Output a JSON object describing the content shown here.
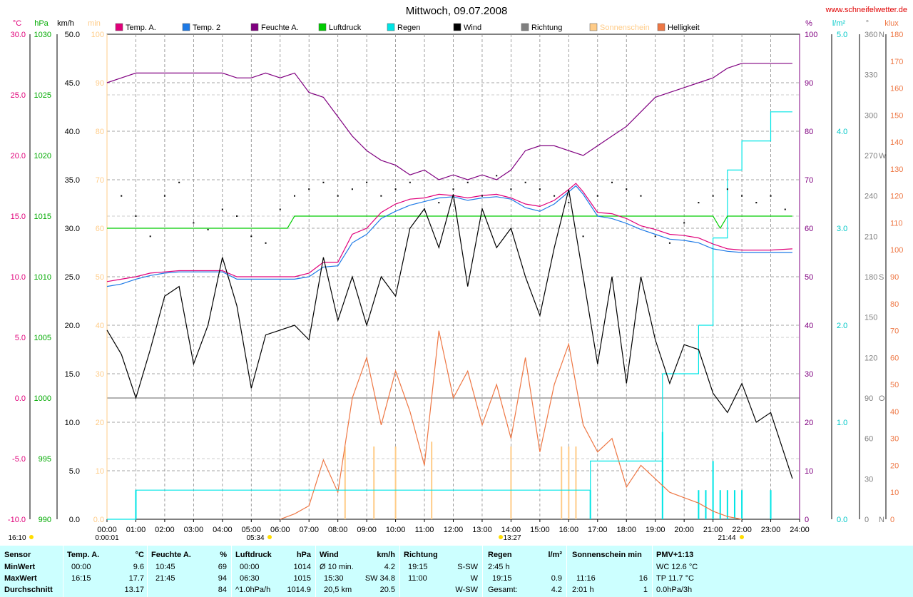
{
  "header": {
    "title": "Mittwoch, 09.07.2008",
    "site": "www.schneifelwetter.de"
  },
  "axis_units": {
    "temp": "°C",
    "pressure": "hPa",
    "wind": "km/h",
    "sun": "min",
    "humidity": "%",
    "rain": "l/m²",
    "direction": "°",
    "light": "klux"
  },
  "legend": [
    {
      "label": "Temp. A.",
      "color": "#e0007a"
    },
    {
      "label": "Temp. 2",
      "color": "#1e7ae6"
    },
    {
      "label": "Feuchte A.",
      "color": "#800080"
    },
    {
      "label": "Luftdruck",
      "color": "#00cc00"
    },
    {
      "label": "Regen",
      "color": "#00e5e5"
    },
    {
      "label": "Wind",
      "color": "#000000"
    },
    {
      "label": "Richtung",
      "color": "#808080"
    },
    {
      "label": "Sonnenschein",
      "color": "#ffcc88"
    },
    {
      "label": "Helligkeit",
      "color": "#ee7744"
    }
  ],
  "markers": {
    "day_start": "0:00:01",
    "sunrise": "05:34",
    "noon": "13:27",
    "sunset": "21:44"
  },
  "chart_data": {
    "type": "line",
    "title": "Mittwoch, 09.07.2008",
    "x_range_hours": [
      0,
      24
    ],
    "x_ticks": [
      "00:00",
      "01:00",
      "02:00",
      "03:00",
      "04:00",
      "05:00",
      "06:00",
      "07:00",
      "08:00",
      "09:00",
      "10:00",
      "11:00",
      "12:00",
      "13:00",
      "14:00",
      "15:00",
      "16:00",
      "17:00",
      "18:00",
      "19:00",
      "20:00",
      "21:00",
      "22:00",
      "23:00",
      "24:00"
    ],
    "axes": {
      "temp_c": {
        "range": [
          -10,
          30
        ],
        "ticks": [
          "-10.0",
          "-5.0",
          "0.0",
          "5.0",
          "10.0",
          "15.0",
          "20.0",
          "25.0",
          "30.0"
        ]
      },
      "pressure_hpa": {
        "range": [
          990,
          1030
        ],
        "ticks": [
          "990",
          "995",
          "1000",
          "1005",
          "1010",
          "1015",
          "1020",
          "1025",
          "1030"
        ]
      },
      "wind_kmh": {
        "range": [
          0,
          50
        ],
        "ticks": [
          "0.0",
          "5.0",
          "10.0",
          "15.0",
          "20.0",
          "25.0",
          "30.0",
          "35.0",
          "40.0",
          "45.0",
          "50.0"
        ]
      },
      "sun_min": {
        "range": [
          0,
          100
        ],
        "ticks": [
          "0.0",
          "10",
          "20",
          "30",
          "40",
          "50",
          "60",
          "70",
          "80",
          "90",
          "100"
        ]
      },
      "humidity_pct": {
        "range": [
          0,
          100
        ],
        "ticks": [
          "0",
          "10",
          "20",
          "30",
          "40",
          "50",
          "60",
          "70",
          "80",
          "90",
          "100"
        ]
      },
      "rain_lm2": {
        "range": [
          0,
          5
        ],
        "ticks": [
          "0.0",
          "1.0",
          "2.0",
          "3.0",
          "4.0",
          "5.0"
        ]
      },
      "direction_deg": {
        "range": [
          0,
          360
        ],
        "ticks": [
          "0",
          "30",
          "60",
          "90",
          "120",
          "150",
          "180",
          "210",
          "240",
          "270",
          "300",
          "330",
          "360"
        ],
        "compass": {
          "0": "N",
          "90": "O",
          "180": "S",
          "270": "W",
          "360": "N"
        }
      },
      "light_klux": {
        "range": [
          0,
          180
        ],
        "ticks": [
          "0",
          "10",
          "20",
          "30",
          "40",
          "50",
          "60",
          "70",
          "80",
          "90",
          "100",
          "110",
          "120",
          "130",
          "140",
          "150",
          "160",
          "170",
          "180"
        ]
      }
    },
    "series": [
      {
        "name": "Temp. A.",
        "axis": "temp_c",
        "color": "#e0007a",
        "x": [
          0,
          0.5,
          1,
          1.5,
          2,
          2.5,
          3,
          3.5,
          4,
          4.5,
          5,
          5.5,
          6,
          6.5,
          7,
          7.5,
          8,
          8.5,
          9,
          9.5,
          10,
          10.5,
          11,
          11.5,
          12,
          12.5,
          13,
          13.5,
          14,
          14.5,
          15,
          15.5,
          16,
          16.25,
          16.5,
          17,
          17.5,
          18,
          18.5,
          19,
          19.5,
          20,
          20.5,
          21,
          21.5,
          22,
          22.5,
          23,
          23.75
        ],
        "y": [
          9.6,
          9.8,
          10.0,
          10.3,
          10.4,
          10.5,
          10.5,
          10.5,
          10.5,
          10.0,
          10.0,
          10.0,
          10.0,
          10.0,
          10.3,
          11.2,
          11.2,
          13.5,
          14.0,
          15.3,
          16.0,
          16.4,
          16.5,
          16.8,
          16.7,
          16.5,
          16.7,
          16.8,
          16.5,
          16.0,
          15.8,
          16.3,
          17.2,
          17.7,
          17.0,
          15.3,
          15.2,
          14.8,
          14.2,
          13.9,
          13.5,
          13.4,
          13.2,
          12.7,
          12.3,
          12.2,
          12.2,
          12.2,
          12.3
        ]
      },
      {
        "name": "Temp. 2",
        "axis": "temp_c",
        "color": "#1e7ae6",
        "x": [
          0,
          0.5,
          1,
          1.5,
          2,
          2.5,
          3,
          3.5,
          4,
          4.5,
          5,
          5.5,
          6,
          6.5,
          7,
          7.5,
          8,
          8.5,
          9,
          9.5,
          10,
          10.5,
          11,
          11.5,
          12,
          12.5,
          13,
          13.5,
          14,
          14.5,
          15,
          15.5,
          16,
          16.25,
          16.5,
          17,
          17.5,
          18,
          18.5,
          19,
          19.5,
          20,
          20.5,
          21,
          21.5,
          22,
          22.5,
          23,
          23.75
        ],
        "y": [
          9.2,
          9.4,
          9.8,
          10.1,
          10.3,
          10.4,
          10.4,
          10.4,
          10.4,
          9.8,
          9.8,
          9.8,
          9.8,
          9.8,
          10.0,
          10.8,
          10.9,
          12.8,
          13.5,
          14.8,
          15.4,
          15.9,
          16.2,
          16.5,
          16.6,
          16.3,
          16.5,
          16.6,
          16.4,
          15.7,
          15.4,
          16.0,
          17.0,
          17.5,
          16.8,
          15.0,
          14.8,
          14.4,
          13.9,
          13.5,
          13.1,
          13.0,
          12.8,
          12.3,
          12.1,
          12.0,
          12.0,
          12.0,
          12.0
        ]
      },
      {
        "name": "Feuchte A.",
        "axis": "humidity_pct",
        "color": "#800080",
        "x": [
          0,
          0.5,
          1,
          1.5,
          2,
          2.5,
          3,
          3.5,
          4,
          4.5,
          5,
          5.5,
          6,
          6.5,
          7,
          7.5,
          8,
          8.5,
          9,
          9.5,
          10,
          10.5,
          11,
          11.5,
          12,
          12.5,
          13,
          13.5,
          14,
          14.5,
          15,
          15.5,
          16,
          16.5,
          17,
          17.5,
          18,
          18.5,
          19,
          19.5,
          20,
          20.5,
          21,
          21.25,
          21.5,
          22,
          22.5,
          23,
          23.75
        ],
        "y": [
          90,
          91,
          92,
          92,
          92,
          92,
          92,
          92,
          92,
          91,
          91,
          92,
          91,
          92,
          88,
          87,
          83,
          79,
          76,
          74,
          73,
          71,
          72,
          70,
          71,
          70,
          71,
          70,
          72,
          76,
          77,
          77,
          76,
          75,
          77,
          79,
          81,
          84,
          87,
          88,
          89,
          90,
          91,
          92,
          93,
          94,
          94,
          94,
          94
        ]
      },
      {
        "name": "Luftdruck",
        "axis": "pressure_hpa",
        "color": "#00cc00",
        "x": [
          0,
          3,
          6.25,
          6.5,
          9,
          12,
          15,
          18,
          20.5,
          21,
          21.25,
          21.5,
          22,
          23,
          23.75
        ],
        "y": [
          1014,
          1014,
          1014,
          1015,
          1015,
          1015,
          1015,
          1015,
          1015,
          1015,
          1014,
          1015,
          1015,
          1015,
          1015
        ]
      },
      {
        "name": "Wind",
        "axis": "wind_kmh",
        "color": "#000000",
        "x": [
          0,
          0.5,
          1,
          1.5,
          2,
          2.5,
          3,
          3.5,
          4,
          4.5,
          5,
          5.5,
          6,
          6.5,
          7,
          7.5,
          8,
          8.5,
          9,
          9.5,
          10,
          10.5,
          11,
          11.5,
          12,
          12.5,
          13,
          13.5,
          14,
          14.5,
          15,
          15.5,
          16,
          16.5,
          17,
          17.5,
          18,
          18.5,
          19,
          19.5,
          20,
          20.5,
          21,
          21.5,
          22,
          22.5,
          23,
          23.75
        ],
        "y": [
          19.5,
          17.0,
          12.5,
          17.5,
          23.0,
          24.0,
          16.0,
          20.0,
          27.0,
          22.0,
          13.5,
          19.0,
          19.5,
          20.0,
          18.5,
          27.0,
          20.5,
          25.0,
          20.0,
          25.0,
          23.0,
          30.0,
          32.0,
          28.0,
          33.5,
          24.0,
          32.0,
          28.0,
          30.0,
          25.0,
          21.0,
          28.0,
          34.0,
          25.0,
          16.0,
          25.0,
          14.0,
          25.0,
          18.5,
          14.0,
          18.0,
          17.5,
          13.0,
          11.0,
          14.0,
          10.0,
          11.0,
          4.2
        ]
      },
      {
        "name": "Regen",
        "axis": "rain_lm2",
        "color": "#00e5e5",
        "cumulative": true,
        "x": [
          0,
          0.75,
          1,
          16.5,
          16.75,
          19,
          19.25,
          20,
          20.5,
          21,
          21.5,
          22,
          22.5,
          23,
          23.75
        ],
        "y": [
          0,
          0,
          0.3,
          0.3,
          0.6,
          0.6,
          1.5,
          1.5,
          2.0,
          2.9,
          3.6,
          3.9,
          3.9,
          4.2,
          4.2
        ]
      },
      {
        "name": "Helligkeit",
        "axis": "light_klux",
        "color": "#ee7744",
        "x": [
          6,
          6.5,
          7,
          7.5,
          8,
          8.5,
          9,
          9.5,
          10,
          10.5,
          11,
          11.5,
          12,
          12.5,
          13,
          13.5,
          14,
          14.5,
          15,
          15.5,
          16,
          16.5,
          17,
          17.5,
          18,
          18.5,
          19,
          19.5,
          20,
          20.5,
          21,
          21.5,
          22
        ],
        "y": [
          0,
          2,
          5,
          22,
          10,
          45,
          60,
          35,
          55,
          40,
          20,
          70,
          45,
          55,
          35,
          50,
          30,
          60,
          25,
          50,
          65,
          35,
          25,
          30,
          12,
          20,
          15,
          10,
          8,
          6,
          3,
          1,
          0
        ]
      }
    ],
    "bars": [
      {
        "name": "Sonnenschein",
        "axis": "sun_min",
        "color": "#ffcc88",
        "x": [
          8.25,
          9.25,
          10,
          11.25,
          14,
          15.75,
          16,
          16.25
        ],
        "y": [
          15,
          15,
          15,
          16,
          15,
          15,
          15,
          15
        ]
      },
      {
        "name": "Regen",
        "axis": "rain_lm2",
        "color": "#00e5e5",
        "x": [
          1,
          16.75,
          19.25,
          20.5,
          20.75,
          21,
          21.25,
          21.5,
          21.75,
          22,
          23
        ],
        "y": [
          0.3,
          0.3,
          0.9,
          0.3,
          0.3,
          0.6,
          0.3,
          0.3,
          0.3,
          0.3,
          0.3
        ]
      }
    ],
    "points": [
      {
        "name": "Richtung",
        "axis": "direction_deg",
        "color": "#000000",
        "x": [
          0.5,
          1,
          1.5,
          2,
          2.5,
          3,
          3.5,
          4,
          4.5,
          5,
          5.5,
          6,
          6.5,
          7,
          7.5,
          8,
          8.5,
          9,
          9.5,
          10,
          10.5,
          11,
          11.5,
          12,
          12.5,
          13,
          13.5,
          14,
          14.5,
          15,
          15.5,
          16,
          16.5,
          17,
          17.5,
          18,
          18.5,
          19,
          19.5,
          20,
          20.5,
          21,
          21.5,
          22,
          22.5,
          23,
          23.5
        ],
        "y": [
          240,
          225,
          210,
          240,
          250,
          220,
          215,
          230,
          225,
          210,
          205,
          230,
          240,
          245,
          250,
          240,
          245,
          250,
          240,
          245,
          250,
          230,
          235,
          245,
          250,
          240,
          255,
          245,
          250,
          245,
          240,
          235,
          210,
          240,
          250,
          245,
          240,
          210,
          205,
          220,
          235,
          240,
          245,
          240,
          235,
          240,
          230
        ]
      }
    ]
  },
  "stats": {
    "sensor": {
      "header": "Sensor",
      "rows": [
        "MinWert",
        "MaxWert",
        "Durchschnitt"
      ]
    },
    "temp": {
      "header": "Temp. A.",
      "unit": "°C",
      "rows": [
        {
          "time": "00:00",
          "value": "9.6"
        },
        {
          "time": "16:15",
          "value": "17.7"
        },
        {
          "time": "",
          "value": "13.17"
        }
      ]
    },
    "humidity": {
      "header": "Feuchte A.",
      "unit": "%",
      "rows": [
        {
          "time": "10:45",
          "value": "69"
        },
        {
          "time": "21:45",
          "value": "94"
        },
        {
          "time": "",
          "value": "84"
        }
      ]
    },
    "pressure": {
      "header": "Luftdruck",
      "unit": "hPa",
      "rows": [
        {
          "time": "00:00",
          "value": "1014"
        },
        {
          "time": "06:30",
          "value": "1015"
        },
        {
          "time": "^1.0hPa/h",
          "value": "1014.9"
        }
      ]
    },
    "wind": {
      "header": "Wind",
      "unit": "km/h",
      "rows": [
        {
          "time": "Ø 10 min.",
          "value": "4.2"
        },
        {
          "time": "15:30",
          "value": "SW 34.8"
        },
        {
          "time": "20,5 km",
          "value": "20.5"
        }
      ]
    },
    "direction": {
      "header": "Richtung",
      "rows": [
        {
          "time": "19:15",
          "value": "S-SW"
        },
        {
          "time": "11:00",
          "value": "W"
        },
        {
          "time": "",
          "value": "W-SW"
        }
      ]
    },
    "rain": {
      "header": "Regen",
      "unit": "l/m²",
      "rows": [
        {
          "time": "2:45 h",
          "value": ""
        },
        {
          "time": "19:15",
          "value": "0.9"
        },
        {
          "time": "Gesamt:",
          "value": "4.2"
        }
      ]
    },
    "sun": {
      "header": "Sonnenschein min",
      "rows": [
        {
          "time": "11:16",
          "value": "16"
        },
        {
          "time": "2:01 h",
          "value": "1"
        }
      ]
    },
    "pmv": {
      "header": "PMV+1:13",
      "rows": [
        "WC 12.6 °C",
        "TP 11.7 °C",
        "0.0hPa/3h"
      ]
    }
  }
}
